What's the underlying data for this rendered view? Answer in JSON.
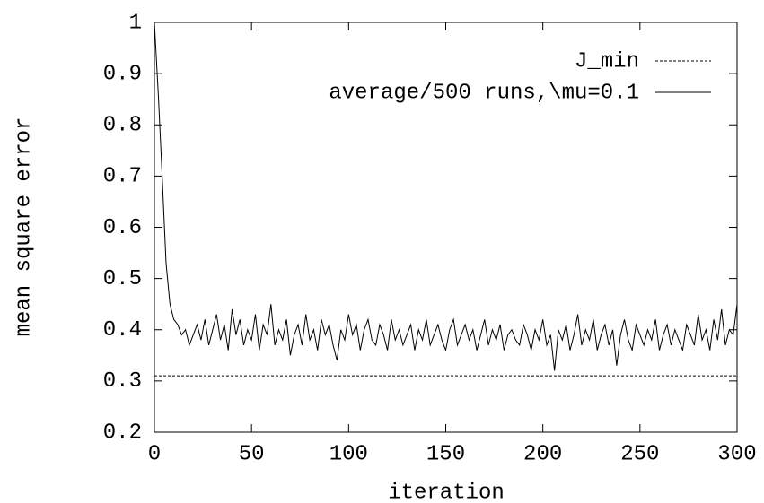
{
  "chart_data": {
    "type": "line",
    "xlabel": "iteration",
    "ylabel": "mean square error",
    "xlim": [
      0,
      300
    ],
    "xticks": [
      0,
      50,
      100,
      150,
      200,
      250,
      300
    ],
    "ylim": [
      0.2,
      1
    ],
    "yticks": [
      0.2,
      0.3,
      0.4,
      0.5,
      0.6,
      0.7,
      0.8,
      0.9,
      1
    ],
    "legend": "top-right",
    "series": [
      {
        "name": "J_min",
        "color": "#000000",
        "dash": true,
        "x": [
          0,
          300
        ],
        "values": [
          0.31,
          0.31
        ]
      },
      {
        "name": "average/500 runs,\\mu=0.1",
        "color": "#000000",
        "dash": false,
        "x": [
          0,
          2,
          4,
          6,
          8,
          10,
          12,
          14,
          16,
          18,
          20,
          22,
          24,
          26,
          28,
          30,
          32,
          34,
          36,
          38,
          40,
          42,
          44,
          46,
          48,
          50,
          52,
          54,
          56,
          58,
          60,
          62,
          64,
          66,
          68,
          70,
          72,
          74,
          76,
          78,
          80,
          82,
          84,
          86,
          88,
          90,
          92,
          94,
          96,
          98,
          100,
          102,
          104,
          106,
          108,
          110,
          112,
          114,
          116,
          118,
          120,
          122,
          124,
          126,
          128,
          130,
          132,
          134,
          136,
          138,
          140,
          142,
          144,
          146,
          148,
          150,
          152,
          154,
          156,
          158,
          160,
          162,
          164,
          166,
          168,
          170,
          172,
          174,
          176,
          178,
          180,
          182,
          184,
          186,
          188,
          190,
          192,
          194,
          196,
          198,
          200,
          202,
          204,
          206,
          208,
          210,
          212,
          214,
          216,
          218,
          220,
          222,
          224,
          226,
          228,
          230,
          232,
          234,
          236,
          238,
          240,
          242,
          244,
          246,
          248,
          250,
          252,
          254,
          256,
          258,
          260,
          262,
          264,
          266,
          268,
          270,
          272,
          274,
          276,
          278,
          280,
          282,
          284,
          286,
          288,
          290,
          292,
          294,
          296,
          298,
          300
        ],
        "values": [
          1.0,
          0.86,
          0.7,
          0.53,
          0.45,
          0.42,
          0.41,
          0.39,
          0.4,
          0.37,
          0.39,
          0.41,
          0.38,
          0.42,
          0.37,
          0.4,
          0.43,
          0.38,
          0.41,
          0.36,
          0.44,
          0.39,
          0.42,
          0.37,
          0.4,
          0.38,
          0.43,
          0.36,
          0.41,
          0.39,
          0.45,
          0.37,
          0.4,
          0.38,
          0.42,
          0.35,
          0.39,
          0.41,
          0.37,
          0.43,
          0.38,
          0.4,
          0.36,
          0.42,
          0.39,
          0.41,
          0.37,
          0.34,
          0.4,
          0.38,
          0.43,
          0.39,
          0.41,
          0.36,
          0.4,
          0.42,
          0.38,
          0.37,
          0.41,
          0.39,
          0.36,
          0.42,
          0.38,
          0.4,
          0.37,
          0.39,
          0.41,
          0.36,
          0.4,
          0.38,
          0.42,
          0.37,
          0.39,
          0.41,
          0.38,
          0.36,
          0.4,
          0.42,
          0.37,
          0.39,
          0.41,
          0.38,
          0.4,
          0.36,
          0.39,
          0.42,
          0.37,
          0.4,
          0.38,
          0.41,
          0.36,
          0.39,
          0.4,
          0.38,
          0.37,
          0.41,
          0.39,
          0.36,
          0.4,
          0.38,
          0.42,
          0.37,
          0.39,
          0.32,
          0.4,
          0.38,
          0.41,
          0.36,
          0.39,
          0.43,
          0.37,
          0.4,
          0.38,
          0.42,
          0.36,
          0.39,
          0.41,
          0.37,
          0.4,
          0.33,
          0.39,
          0.42,
          0.38,
          0.36,
          0.41,
          0.39,
          0.37,
          0.4,
          0.38,
          0.42,
          0.36,
          0.39,
          0.41,
          0.37,
          0.4,
          0.38,
          0.36,
          0.41,
          0.39,
          0.37,
          0.43,
          0.38,
          0.4,
          0.36,
          0.42,
          0.38,
          0.44,
          0.37,
          0.4,
          0.39,
          0.45
        ]
      }
    ]
  }
}
